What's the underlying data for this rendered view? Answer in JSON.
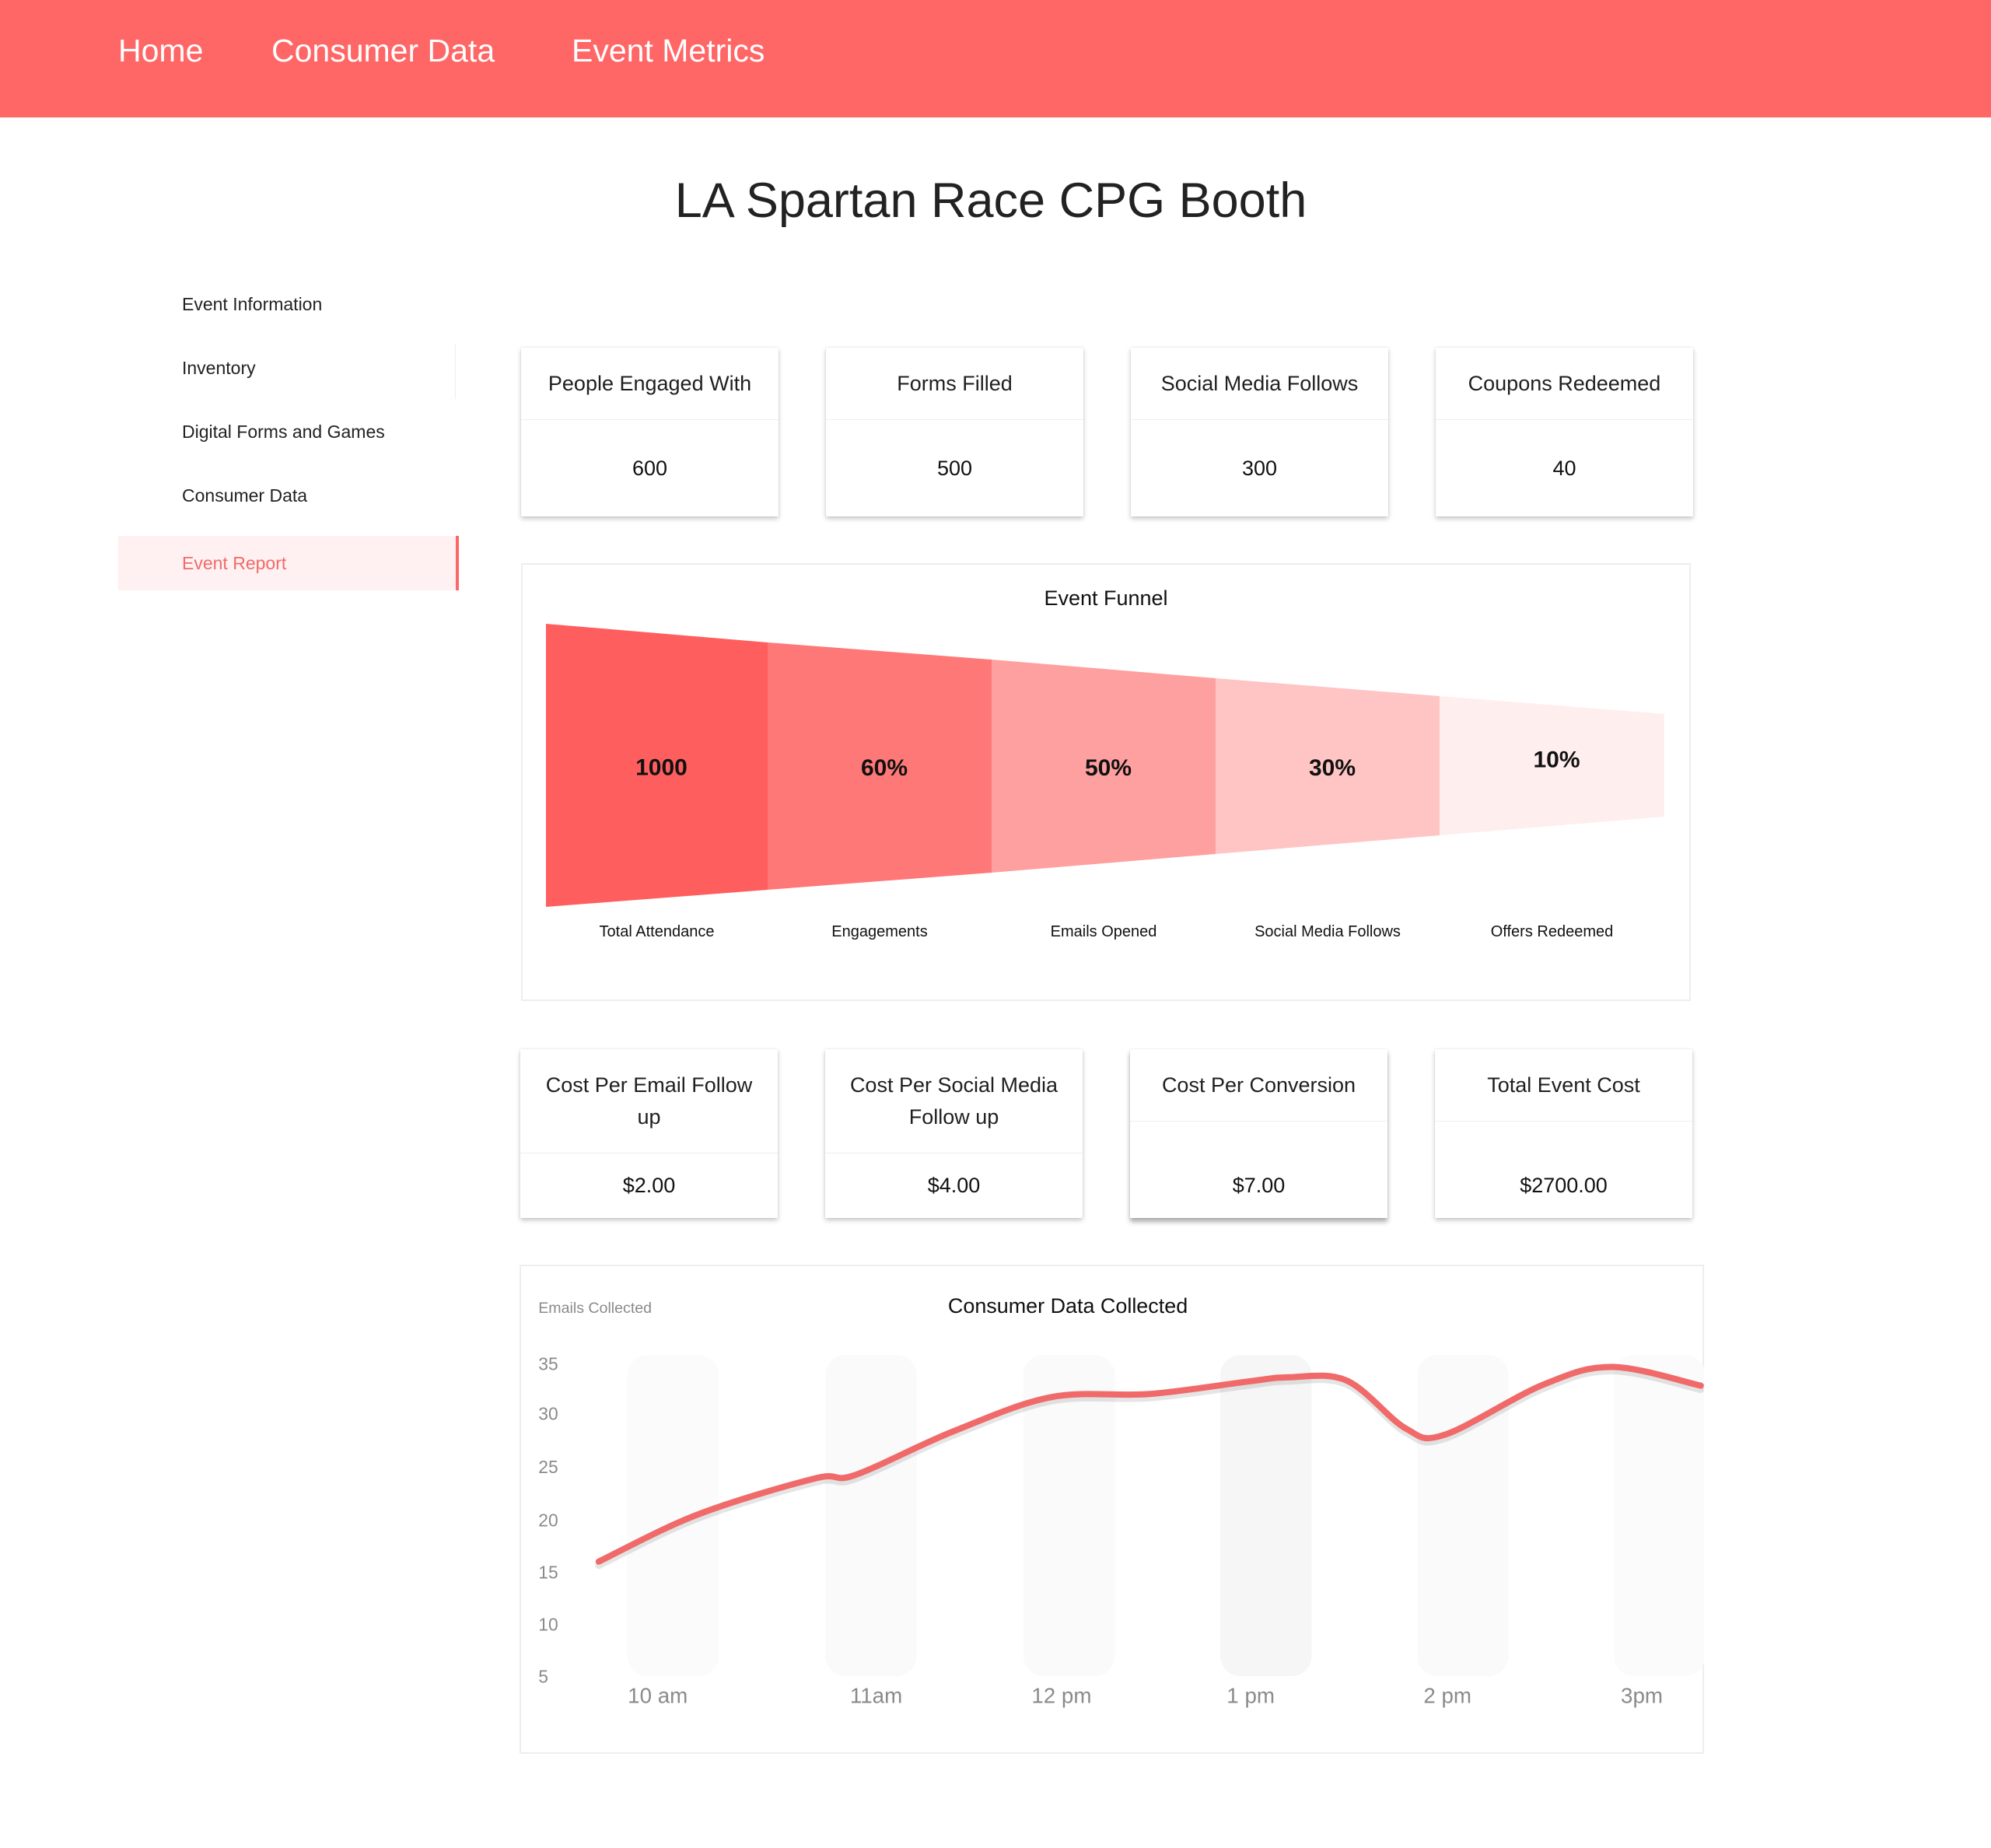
{
  "nav": {
    "home": "Home",
    "consumer_data": "Consumer Data",
    "event_metrics": "Event Metrics"
  },
  "page_title": "LA Spartan Race CPG Booth",
  "sidebar": {
    "items": [
      {
        "label": "Event Information",
        "active": false
      },
      {
        "label": "Inventory",
        "active": false
      },
      {
        "label": "Digital Forms and Games",
        "active": false
      },
      {
        "label": "Consumer Data",
        "active": false
      },
      {
        "label": "Event Report",
        "active": true
      }
    ]
  },
  "stats_top": [
    {
      "label": "People Engaged With",
      "value": "600"
    },
    {
      "label": "Forms Filled",
      "value": "500"
    },
    {
      "label": "Social Media Follows",
      "value": "300"
    },
    {
      "label": "Coupons Redeemed",
      "value": "40"
    }
  ],
  "stats_cost": [
    {
      "label": "Cost Per Email Follow up",
      "value": "$2.00"
    },
    {
      "label": "Cost Per Social Media Follow up",
      "value": "$4.00"
    },
    {
      "label": "Cost Per Conversion",
      "value": "$7.00"
    },
    {
      "label": "Total Event Cost",
      "value": "$2700.00"
    }
  ],
  "funnel": {
    "title": "Event Funnel",
    "stages": [
      {
        "value_label": "1000",
        "name": "Total Attendance",
        "color": "#ff5e5e"
      },
      {
        "value_label": "60%",
        "name": "Engagements",
        "color": "#ff7878"
      },
      {
        "value_label": "50%",
        "name": "Emails Opened",
        "color": "#ffa0a0"
      },
      {
        "value_label": "30%",
        "name": "Social Media Follows",
        "color": "#ffc5c5"
      },
      {
        "value_label": "10%",
        "name": "Offers Redeemed",
        "color": "#ffeeee"
      }
    ]
  },
  "chart_data": {
    "type": "line",
    "title": "Consumer Data Collected",
    "ylabel": "Emails Collected",
    "xlabel": "",
    "categories": [
      "10 am",
      "11am",
      "12 pm",
      "1 pm",
      "2 pm",
      "3pm"
    ],
    "y_ticks": [
      35,
      30,
      25,
      20,
      15,
      10,
      5
    ],
    "ylim": [
      5,
      35
    ],
    "series": [
      {
        "x": [
          9.7,
          10.2,
          10.8,
          11.0,
          11.5,
          12.0,
          12.5,
          13.0,
          13.2,
          13.5,
          13.8,
          14.0,
          14.5,
          14.85,
          15.3
        ],
        "y": [
          16,
          20.5,
          24,
          24.3,
          28.5,
          31.8,
          32.1,
          33.3,
          33.7,
          33.4,
          28.8,
          28.2,
          33.0,
          34.7,
          32.9
        ]
      }
    ],
    "line_color": "#f06a6a",
    "grid": false,
    "legend": "none"
  }
}
